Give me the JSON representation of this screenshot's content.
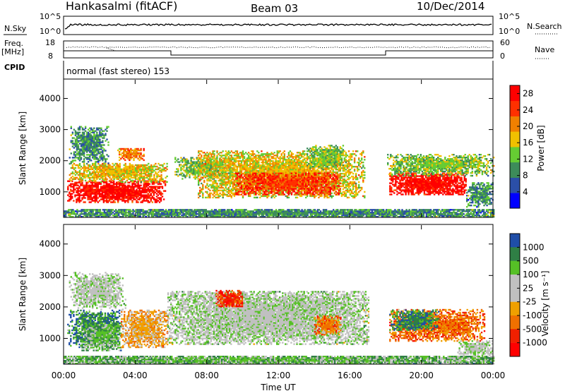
{
  "header": {
    "station": "Hankasalmi (fitACF)",
    "beam": "Beam 03",
    "date": "10/Dec/2014"
  },
  "side_labels": {
    "nsky": "N.Sky",
    "freq": "Freq.",
    "freq_unit": "[MHz]",
    "cpid": "CPID",
    "nsearch": "N.Search",
    "nave": "Nave"
  },
  "nsky_axis": {
    "top": "10^5",
    "bottom": "10^0"
  },
  "nsearch_axis": {
    "top": "10^5",
    "bottom": "10^0"
  },
  "freq_axis": {
    "top": "18",
    "bottom": "8"
  },
  "nave_axis": {
    "top": "60",
    "bottom": "0"
  },
  "cpid_label": "normal (fast stereo) 153",
  "colors": {
    "power": [
      "#0000ff",
      "#2b4fa8",
      "#3d8c5a",
      "#66cc33",
      "#f0c000",
      "#f08000",
      "#ff3000",
      "#ff0000"
    ],
    "velocity": [
      "#1f4ea8",
      "#2f7f45",
      "#56c026",
      "#c0c0c0",
      "#c0c0c0",
      "#f0a000",
      "#f07000",
      "#f02000",
      "#ff0000"
    ]
  },
  "chart_data": [
    {
      "type": "heatmap",
      "name": "power",
      "ylabel": "Slant Range [km]",
      "ylim": [
        180,
        4600
      ],
      "yticks": [
        "1000",
        "2000",
        "3000",
        "4000"
      ],
      "xlim": [
        0,
        24
      ],
      "xticks": [
        "00:00",
        "04:00",
        "08:00",
        "12:00",
        "16:00",
        "20:00",
        "00:00"
      ],
      "xlabel": "Time UT",
      "colorbar": {
        "label": "Power [dB]",
        "ticks": [
          "4",
          "8",
          "12",
          "16",
          "20",
          "24",
          "28"
        ],
        "range": [
          0,
          30
        ]
      },
      "blobs": [
        {
          "t0": 0.2,
          "t1": 5.7,
          "r0": 650,
          "r1": 1350,
          "level": 7,
          "spread": 0.6
        },
        {
          "t0": 0.3,
          "t1": 5.8,
          "r0": 1300,
          "r1": 1900,
          "level": 4,
          "spread": 0.7
        },
        {
          "t0": 0.3,
          "t1": 2.5,
          "r0": 1900,
          "r1": 3100,
          "level": 2,
          "spread": 0.9
        },
        {
          "t0": 3.0,
          "t1": 4.5,
          "r0": 2000,
          "r1": 2400,
          "level": 5,
          "spread": 0.7
        },
        {
          "t0": 6.2,
          "t1": 9.5,
          "r0": 1400,
          "r1": 2100,
          "level": 3,
          "spread": 0.8
        },
        {
          "t0": 7.5,
          "t1": 16.8,
          "r0": 800,
          "r1": 2300,
          "level": 4,
          "spread": 0.7
        },
        {
          "t0": 9.5,
          "t1": 15.5,
          "r0": 900,
          "r1": 1600,
          "level": 6,
          "spread": 0.6
        },
        {
          "t0": 13.5,
          "t1": 15.8,
          "r0": 1700,
          "r1": 2500,
          "level": 3,
          "spread": 0.9
        },
        {
          "t0": 18.2,
          "t1": 22.5,
          "r0": 900,
          "r1": 1600,
          "level": 7,
          "spread": 0.6
        },
        {
          "t0": 18.0,
          "t1": 24.0,
          "r0": 1500,
          "r1": 2200,
          "level": 3,
          "spread": 0.8
        },
        {
          "t0": 22.5,
          "t1": 24.0,
          "r0": 500,
          "r1": 1300,
          "level": 2,
          "spread": 0.8
        },
        {
          "t0": 0.0,
          "t1": 24.0,
          "r0": 180,
          "r1": 420,
          "level": 2,
          "spread": 0.25
        }
      ]
    },
    {
      "type": "heatmap",
      "name": "velocity",
      "ylabel": "Slant Range [km]",
      "ylim": [
        180,
        4600
      ],
      "yticks": [
        "1000",
        "2000",
        "3000",
        "4000"
      ],
      "xlim": [
        0,
        24
      ],
      "xticks": [
        "00:00",
        "04:00",
        "08:00",
        "12:00",
        "16:00",
        "20:00",
        "00:00"
      ],
      "xlabel": "Time UT",
      "colorbar": {
        "label": "Velocity [m s⁻¹]",
        "ticks": [
          "1000",
          "500",
          "100",
          "25",
          "-25",
          "-100",
          "-500",
          "-1000"
        ]
      },
      "blobs": [
        {
          "t0": 0.2,
          "t1": 3.2,
          "r0": 700,
          "r1": 1900,
          "level": 1,
          "spread": 0.8
        },
        {
          "t0": 1.0,
          "t1": 3.2,
          "r0": 600,
          "r1": 1500,
          "level": 2,
          "spread": 0.6
        },
        {
          "t0": 3.2,
          "t1": 5.8,
          "r0": 700,
          "r1": 1900,
          "level": 5,
          "spread": 0.7
        },
        {
          "t0": 0.3,
          "t1": 3.5,
          "r0": 1900,
          "r1": 3100,
          "level": 3,
          "spread": 0.95
        },
        {
          "t0": 5.8,
          "t1": 17.0,
          "r0": 800,
          "r1": 2500,
          "level": 3,
          "spread": 0.55
        },
        {
          "t0": 8.5,
          "t1": 10.0,
          "r0": 2000,
          "r1": 2500,
          "level": 7,
          "spread": 0.6
        },
        {
          "t0": 14.0,
          "t1": 15.5,
          "r0": 1100,
          "r1": 1700,
          "level": 6,
          "spread": 0.75
        },
        {
          "t0": 18.2,
          "t1": 23.5,
          "r0": 900,
          "r1": 1900,
          "level": 6,
          "spread": 0.65
        },
        {
          "t0": 18.2,
          "t1": 21.0,
          "r0": 1200,
          "r1": 1900,
          "level": 1,
          "spread": 0.9
        },
        {
          "t0": 22.0,
          "t1": 24.0,
          "r0": 400,
          "r1": 900,
          "level": 3,
          "spread": 0.8
        },
        {
          "t0": 0.0,
          "t1": 24.0,
          "r0": 180,
          "r1": 420,
          "level": 2,
          "spread": 0.2
        }
      ]
    }
  ]
}
